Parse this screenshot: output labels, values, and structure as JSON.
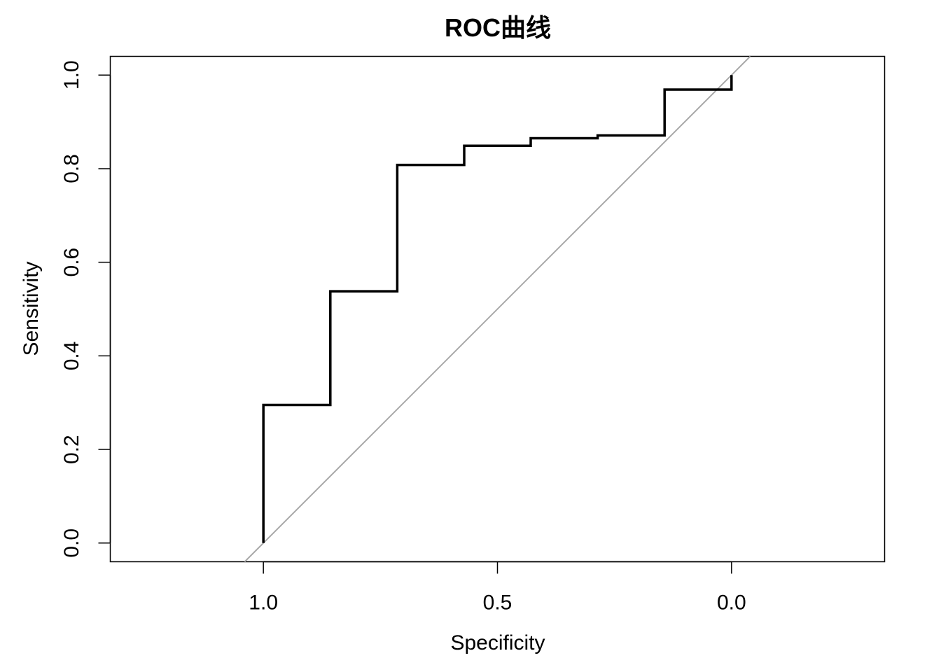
{
  "chart_data": {
    "type": "line",
    "title": "ROC曲线",
    "xlabel": "Specificity",
    "ylabel": "Sensitivity",
    "x_reversed": true,
    "xlim": [
      1.327,
      -0.327
    ],
    "ylim": [
      -0.04,
      1.04
    ],
    "xticks": [
      {
        "value": 1.0,
        "label": "1.0"
      },
      {
        "value": 0.5,
        "label": "0.5"
      },
      {
        "value": 0.0,
        "label": "0.0"
      }
    ],
    "yticks": [
      {
        "value": 0.0,
        "label": "0.0"
      },
      {
        "value": 0.2,
        "label": "0.2"
      },
      {
        "value": 0.4,
        "label": "0.4"
      },
      {
        "value": 0.6,
        "label": "0.6"
      },
      {
        "value": 0.8,
        "label": "0.8"
      },
      {
        "value": 1.0,
        "label": "1.0"
      }
    ],
    "grid": false,
    "series": [
      {
        "color": "#000000",
        "specificity": [
          1.0,
          1.0,
          0.857,
          0.857,
          0.714,
          0.714,
          0.571,
          0.571,
          0.429,
          0.429,
          0.286,
          0.286,
          0.143,
          0.143,
          0.0,
          0.0
        ],
        "sensitivity": [
          0.0,
          0.295,
          0.295,
          0.538,
          0.538,
          0.808,
          0.808,
          0.849,
          0.849,
          0.865,
          0.865,
          0.871,
          0.871,
          0.969,
          0.969,
          1.0
        ]
      }
    ],
    "reference_line": {
      "color": "#aaaaaa",
      "description_values": {
        "from": [
          1.04,
          -0.04
        ],
        "to": [
          -0.04,
          1.04
        ]
      }
    }
  }
}
